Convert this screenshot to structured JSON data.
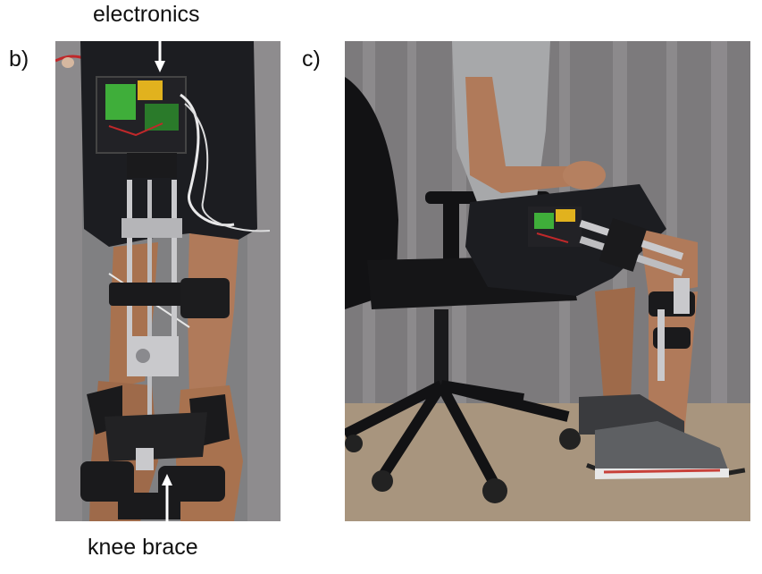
{
  "figure": {
    "panel_b": {
      "letter": "b)",
      "top_label": "electronics",
      "bottom_label": "knee brace"
    },
    "panel_c": {
      "letter": "c)"
    }
  },
  "colors": {
    "curtain": "#7c7a7c",
    "curtain_light": "#9a989a",
    "shorts": "#1c1d21",
    "skin": "#b07a5a",
    "brace": "#1a1a1c",
    "metal": "#c9c9cc",
    "pcb_green": "#3fae3a",
    "board_yellow": "#e1b21e",
    "floor": "#a8957e",
    "shirt": "#a7a8aa",
    "chair": "#121214",
    "shoe_grey": "#5e6063",
    "shoe_red": "#c8413a"
  }
}
